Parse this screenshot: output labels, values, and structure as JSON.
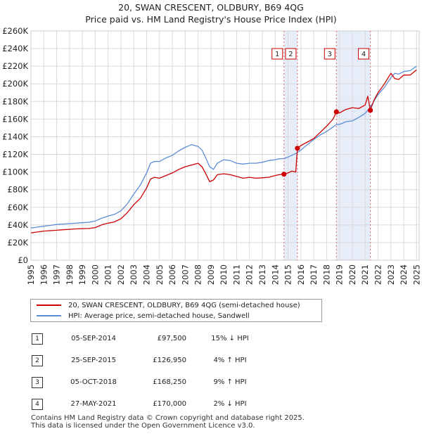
{
  "title_line1": "20, SWAN CRESCENT, OLDBURY, B69 4QG",
  "title_line2": "Price paid vs. HM Land Registry's House Price Index (HPI)",
  "chart_data": {
    "type": "line",
    "title": "20, SWAN CRESCENT, OLDBURY, B69 4QG — Price paid vs. HM Land Registry's House Price Index (HPI)",
    "xlabel": "",
    "ylabel": "",
    "xlim": [
      1995,
      2025.2
    ],
    "ylim": [
      0,
      260000
    ],
    "grid": true,
    "y_ticks": [
      0,
      20000,
      40000,
      60000,
      80000,
      100000,
      120000,
      140000,
      160000,
      180000,
      200000,
      220000,
      240000,
      260000
    ],
    "y_tick_labels": [
      "£0",
      "£20K",
      "£40K",
      "£60K",
      "£80K",
      "£100K",
      "£120K",
      "£140K",
      "£160K",
      "£180K",
      "£200K",
      "£220K",
      "£240K",
      "£260K"
    ],
    "x_ticks": [
      1995,
      1996,
      1997,
      1998,
      1999,
      2000,
      2001,
      2002,
      2003,
      2004,
      2005,
      2006,
      2007,
      2008,
      2009,
      2010,
      2011,
      2012,
      2013,
      2014,
      2015,
      2016,
      2017,
      2018,
      2019,
      2020,
      2021,
      2022,
      2023,
      2024,
      2025
    ],
    "x_tick_labels": [
      "1995",
      "1996",
      "1997",
      "1998",
      "1999",
      "2000",
      "2001",
      "2002",
      "2003",
      "2004",
      "2005",
      "2006",
      "2007",
      "2008",
      "2009",
      "2010",
      "2011",
      "2012",
      "2013",
      "2014",
      "2015",
      "2016",
      "2017",
      "2018",
      "2019",
      "2020",
      "2021",
      "2022",
      "2023",
      "2024",
      "2025"
    ],
    "shaded_ranges": [
      [
        2014.68,
        2015.73
      ],
      [
        2018.76,
        2021.4
      ]
    ],
    "series": [
      {
        "name": "20, SWAN CRESCENT, OLDBURY, B69 4QG (semi-detached house)",
        "color": "#cc0000",
        "x": [
          1995.0,
          1995.5,
          1996.0,
          1996.5,
          1997.0,
          1997.5,
          1998.0,
          1998.5,
          1999.0,
          1999.5,
          2000.0,
          2000.5,
          2001.0,
          2001.5,
          2002.0,
          2002.5,
          2003.0,
          2003.5,
          2004.0,
          2004.3,
          2004.6,
          2005.0,
          2005.5,
          2006.0,
          2006.5,
          2007.0,
          2007.5,
          2008.0,
          2008.3,
          2008.6,
          2008.9,
          2009.2,
          2009.5,
          2010.0,
          2010.5,
          2011.0,
          2011.5,
          2012.0,
          2012.5,
          2013.0,
          2013.5,
          2014.0,
          2014.3,
          2014.68,
          2015.0,
          2015.3,
          2015.6,
          2015.73,
          2016.0,
          2016.5,
          2017.0,
          2017.5,
          2018.0,
          2018.5,
          2018.76,
          2019.0,
          2019.5,
          2020.0,
          2020.5,
          2021.0,
          2021.2,
          2021.4,
          2021.7,
          2022.0,
          2022.5,
          2023.0,
          2023.3,
          2023.6,
          2024.0,
          2024.5,
          2025.0
        ],
        "y": [
          31000,
          32000,
          33000,
          33500,
          34000,
          34500,
          35000,
          35500,
          35800,
          36000,
          37000,
          40000,
          42000,
          43500,
          47000,
          54000,
          63000,
          70000,
          82000,
          92000,
          94000,
          93000,
          96000,
          99000,
          103000,
          106000,
          108000,
          110000,
          106000,
          98000,
          89000,
          91000,
          97000,
          98000,
          97000,
          95000,
          93000,
          94000,
          93000,
          93500,
          94000,
          96000,
          97000,
          97500,
          99000,
          101000,
          100000,
          126950,
          130000,
          134000,
          138000,
          145000,
          152000,
          160000,
          168250,
          167000,
          171000,
          173000,
          172000,
          176000,
          186000,
          170000,
          182000,
          190000,
          200000,
          212000,
          206000,
          205000,
          210000,
          210000,
          216000
        ]
      },
      {
        "name": "HPI: Average price, semi-detached house, Sandwell",
        "color": "#5b8dd6",
        "x": [
          1995.0,
          1995.5,
          1996.0,
          1996.5,
          1997.0,
          1997.5,
          1998.0,
          1998.5,
          1999.0,
          1999.5,
          2000.0,
          2000.5,
          2001.0,
          2001.5,
          2002.0,
          2002.5,
          2003.0,
          2003.5,
          2004.0,
          2004.3,
          2004.6,
          2005.0,
          2005.5,
          2006.0,
          2006.5,
          2007.0,
          2007.5,
          2008.0,
          2008.3,
          2008.6,
          2008.9,
          2009.2,
          2009.5,
          2010.0,
          2010.5,
          2011.0,
          2011.5,
          2012.0,
          2012.5,
          2013.0,
          2013.5,
          2014.0,
          2014.3,
          2014.68,
          2015.0,
          2015.3,
          2015.6,
          2015.73,
          2016.0,
          2016.5,
          2017.0,
          2017.5,
          2018.0,
          2018.5,
          2018.76,
          2019.0,
          2019.5,
          2020.0,
          2020.5,
          2021.0,
          2021.2,
          2021.4,
          2021.7,
          2022.0,
          2022.5,
          2023.0,
          2023.3,
          2023.6,
          2024.0,
          2024.5,
          2025.0
        ],
        "y": [
          36500,
          37500,
          38500,
          39500,
          40500,
          41000,
          41500,
          42000,
          42500,
          43000,
          44500,
          47500,
          50000,
          52000,
          56000,
          64000,
          75000,
          85000,
          99000,
          110000,
          112000,
          112000,
          116000,
          119000,
          124000,
          128000,
          131000,
          129000,
          125000,
          116000,
          106000,
          103000,
          110000,
          114000,
          113000,
          110000,
          109000,
          110000,
          110000,
          111000,
          113000,
          114000,
          115000,
          115200,
          117000,
          119000,
          121000,
          122000,
          125000,
          131000,
          137000,
          142000,
          146000,
          151000,
          154000,
          154000,
          157000,
          158000,
          162000,
          166500,
          170000,
          173500,
          181000,
          188000,
          196000,
          207000,
          212000,
          211000,
          214000,
          215000,
          220000
        ]
      }
    ],
    "sale_points": [
      {
        "label": "1",
        "x": 2014.68,
        "y": 97500
      },
      {
        "label": "2",
        "x": 2015.73,
        "y": 126950
      },
      {
        "label": "3",
        "x": 2018.76,
        "y": 168250
      },
      {
        "label": "4",
        "x": 2021.4,
        "y": 170000
      }
    ]
  },
  "legend": {
    "property_label": "20, SWAN CRESCENT, OLDBURY, B69 4QG (semi-detached house)",
    "property_color": "#cc0000",
    "hpi_label": "HPI: Average price, semi-detached house, Sandwell",
    "hpi_color": "#5b8dd6"
  },
  "sales": [
    {
      "num": "1",
      "date": "05-SEP-2014",
      "price": "£97,500",
      "hpi": "15% ↓ HPI"
    },
    {
      "num": "2",
      "date": "25-SEP-2015",
      "price": "£126,950",
      "hpi": "4% ↑ HPI"
    },
    {
      "num": "3",
      "date": "05-OCT-2018",
      "price": "£168,250",
      "hpi": "9% ↑ HPI"
    },
    {
      "num": "4",
      "date": "27-MAY-2021",
      "price": "£170,000",
      "hpi": "2% ↓ HPI"
    }
  ],
  "footer": {
    "line1": "Contains HM Land Registry data © Crown copyright and database right 2025.",
    "line2": "This data is licensed under the Open Government Licence v3.0."
  }
}
